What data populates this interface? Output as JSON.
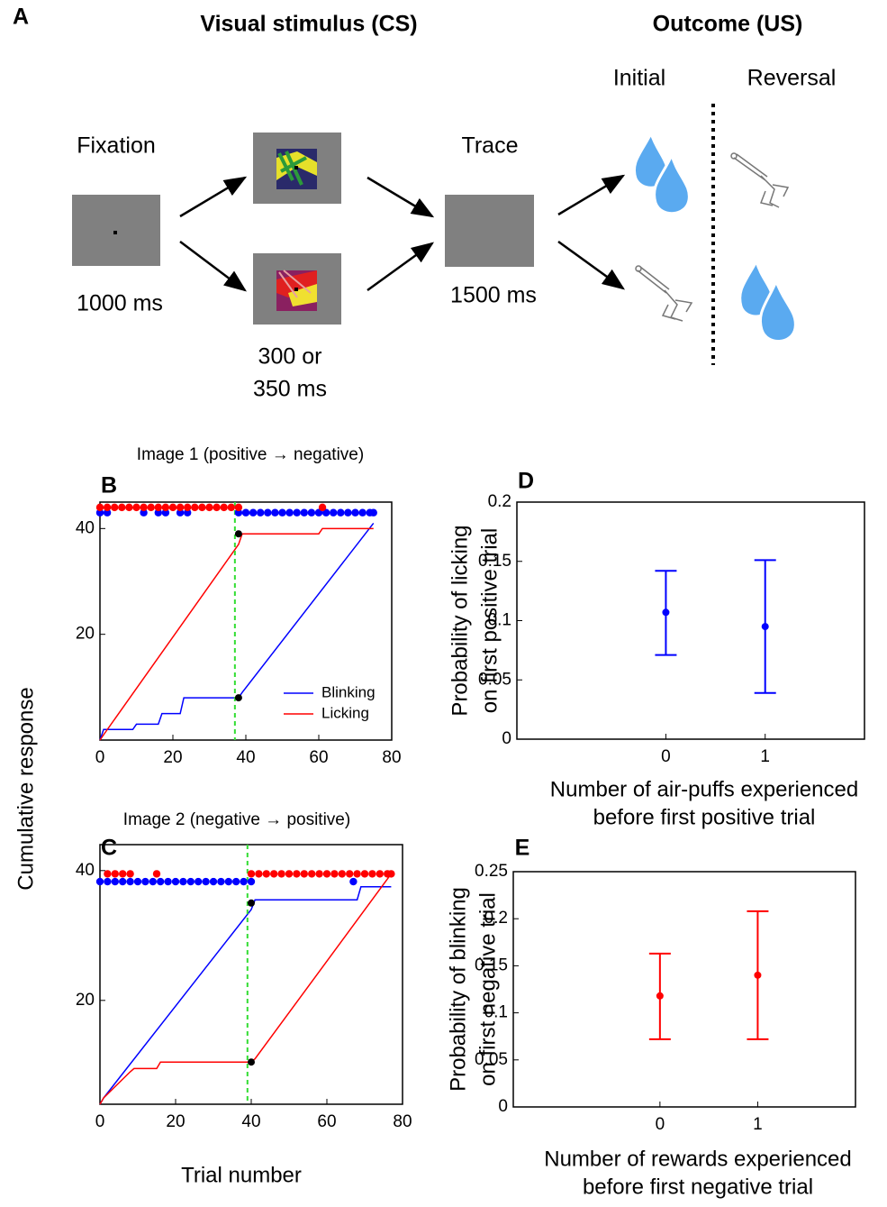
{
  "panel_a": {
    "label": "A",
    "cs_title": "Visual stimulus (CS)",
    "us_title": "Outcome (US)",
    "initial": "Initial",
    "reversal": "Reversal",
    "fixation": "Fixation",
    "fixation_time": "1000 ms",
    "trace": "Trace",
    "trace_time": "1500 ms",
    "cs_time": [
      "300 or",
      "350 ms"
    ]
  },
  "figure": {
    "ylabel": "Cumulative response",
    "xlabel": "Trial number"
  },
  "chart_data": [
    {
      "type": "line",
      "label": "B",
      "title": "Image 1 (positive → negative)",
      "xlim": [
        0,
        80
      ],
      "xticks": [
        0,
        20,
        40,
        60,
        80
      ],
      "ylim": [
        0,
        45
      ],
      "yticks": [
        20,
        40
      ],
      "legend": "lower right",
      "series": [
        {
          "name": "Blinking",
          "color": "#0000ff",
          "x": [
            0,
            1,
            9,
            10,
            16,
            17,
            22,
            23,
            38,
            39,
            75
          ],
          "values": [
            0,
            2,
            2,
            3,
            3,
            5,
            5,
            8,
            8,
            9,
            41
          ]
        },
        {
          "name": "Licking",
          "color": "#ff0000",
          "x": [
            0,
            1,
            38,
            39,
            60,
            61,
            75
          ],
          "values": [
            0,
            1,
            37,
            39,
            39,
            40,
            40
          ]
        }
      ],
      "response_dots": [
        {
          "color": "#0000ff",
          "y": 43,
          "x": [
            0,
            2,
            12,
            16,
            18,
            22,
            24,
            38,
            40,
            42,
            44,
            46,
            48,
            50,
            52,
            54,
            56,
            58,
            60,
            62,
            64,
            66,
            68,
            70,
            72,
            74,
            75
          ]
        },
        {
          "color": "#ff0000",
          "y": 44,
          "x": [
            0,
            2,
            4,
            6,
            8,
            10,
            12,
            14,
            16,
            18,
            20,
            22,
            24,
            26,
            28,
            30,
            32,
            34,
            36,
            38,
            61
          ]
        }
      ],
      "reversal_x": 37,
      "reversal_color": "#33dd33",
      "markers": {
        "color": "#000000",
        "x": [
          38,
          38
        ],
        "values": [
          39,
          8
        ]
      }
    },
    {
      "type": "line",
      "label": "C",
      "title": "Image 2 (negative → positive)",
      "xlim": [
        0,
        80
      ],
      "xticks": [
        0,
        20,
        40,
        60,
        80
      ],
      "ylim": [
        4,
        44
      ],
      "yticks": [
        20,
        40
      ],
      "series": [
        {
          "name": "Blinking",
          "color": "#0000ff",
          "x": [
            0,
            1,
            40,
            41,
            68,
            69,
            77
          ],
          "values": [
            4,
            5,
            34,
            35.5,
            35.5,
            37.5,
            37.5
          ]
        },
        {
          "name": "Licking",
          "color": "#ff0000",
          "x": [
            0,
            1,
            8,
            9,
            15,
            16,
            40,
            41,
            77
          ],
          "values": [
            4,
            5,
            9,
            9.5,
            9.5,
            10.5,
            10.5,
            11,
            39.5
          ]
        }
      ],
      "response_dots": [
        {
          "color": "#0000ff",
          "y": 38.3,
          "x": [
            0,
            2,
            4,
            6,
            8,
            10,
            12,
            14,
            16,
            18,
            20,
            22,
            24,
            26,
            28,
            30,
            32,
            34,
            36,
            38,
            40,
            67
          ]
        },
        {
          "color": "#ff0000",
          "y": 39.5,
          "x": [
            2,
            4,
            6,
            8,
            15,
            40,
            42,
            44,
            46,
            48,
            50,
            52,
            54,
            56,
            58,
            60,
            62,
            64,
            66,
            68,
            70,
            72,
            74,
            76,
            77
          ]
        }
      ],
      "reversal_x": 39,
      "reversal_color": "#33dd33",
      "markers": {
        "color": "#000000",
        "x": [
          40,
          40
        ],
        "values": [
          35,
          10.5
        ]
      }
    },
    {
      "type": "errorbar",
      "label": "D",
      "color": "#0000ff",
      "ylabel": [
        "Probability of licking",
        "on first positive trial"
      ],
      "xlabel": [
        "Number of air-puffs experienced",
        "before first positive trial"
      ],
      "xlim": [
        -1.5,
        2
      ],
      "xticks": [
        0,
        1
      ],
      "ylim": [
        0,
        0.2
      ],
      "yticks": [
        0,
        0.05,
        0.1,
        0.15,
        0.2
      ],
      "x": [
        0,
        1
      ],
      "values": [
        0.107,
        0.095
      ],
      "err_low": [
        0.071,
        0.039
      ],
      "err_high": [
        0.142,
        0.151
      ]
    },
    {
      "type": "errorbar",
      "label": "E",
      "color": "#ff0000",
      "ylabel": [
        "Probability of blinking",
        "on first negative trial"
      ],
      "xlabel": [
        "Number of rewards experienced",
        "before first negative trial"
      ],
      "xlim": [
        -1.5,
        2
      ],
      "xticks": [
        0,
        1
      ],
      "ylim": [
        0,
        0.25
      ],
      "yticks": [
        0,
        0.05,
        0.1,
        0.15,
        0.2,
        0.25
      ],
      "x": [
        0,
        1
      ],
      "values": [
        0.118,
        0.14
      ],
      "err_low": [
        0.072,
        0.072
      ],
      "err_high": [
        0.163,
        0.208
      ]
    }
  ]
}
